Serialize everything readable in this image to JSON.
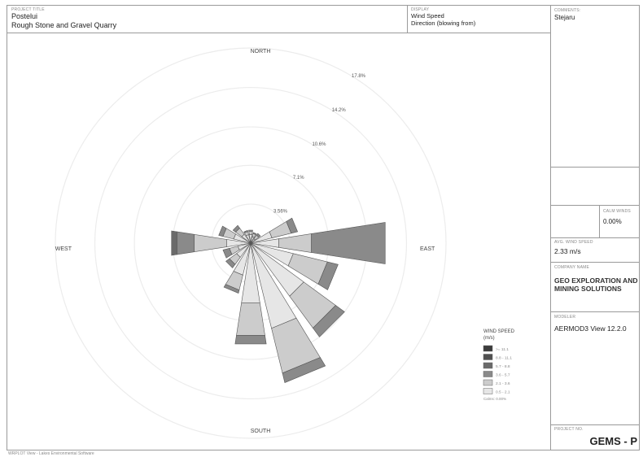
{
  "header": {
    "project_caption": "PROJECT TITLE",
    "project_title_line1": "Postelui",
    "project_title_line2": "Rough Stone and Gravel Quarry",
    "display_caption": "DISPLAY",
    "display_line1": "Wind Speed",
    "display_line2": "Direction (blowing from)"
  },
  "side_panel": {
    "comments_caption": "COMMENTS:",
    "comments_value": "Stejaru",
    "calms_caption": "CALM WINDS",
    "calms_value": "0.00%",
    "avg_caption": "AVG. WIND SPEED",
    "avg_value": "2.33 m/s",
    "company_caption": "COMPANY NAME",
    "company_line1": "GEO EXPLORATION AND",
    "company_line2": "MINING SOLUTIONS",
    "modeler_caption": "MODELER",
    "modeler_value": "AERMOD3 View 12.2.0",
    "logo_caption": "PROJECT NO.",
    "logo_value": "GEMS - P"
  },
  "footer": {
    "text": "WRPLOT View - Lakes Environmental Software"
  },
  "chart_data": {
    "type": "polar-bar",
    "title": "",
    "direction_labels": {
      "north": "NORTH",
      "south": "SOUTH",
      "east": "EAST",
      "west": "WEST"
    },
    "ring_labels": [
      "3.56%",
      "7.1%",
      "10.6%",
      "14.2%",
      "17.8%"
    ],
    "ring_values": [
      3.56,
      7.1,
      10.6,
      14.2,
      17.8
    ],
    "directions": [
      "N",
      "NNE",
      "NE",
      "ENE",
      "E",
      "ESE",
      "SE",
      "SSE",
      "S",
      "SSW",
      "SW",
      "WSW",
      "W",
      "WNW",
      "NW",
      "NNW"
    ],
    "speed_bins": [
      "0.5 - 2.1",
      "2.1 - 3.6",
      "3.6 - 5.7",
      "5.7 - 8.8",
      "8.8 - 11.1",
      ">= 11.1"
    ],
    "series": [
      {
        "bin": "0.5 - 2.1",
        "values": [
          0.8,
          0.6,
          0.5,
          2.0,
          2.6,
          4.0,
          6.0,
          8.0,
          5.5,
          3.0,
          1.6,
          1.2,
          2.2,
          1.6,
          1.0,
          0.8
        ]
      },
      {
        "bin": "2.1 - 3.6",
        "values": [
          0.3,
          0.3,
          0.4,
          1.8,
          3.0,
          3.2,
          3.6,
          4.2,
          3.0,
          1.4,
          0.8,
          0.8,
          3.0,
          1.0,
          0.7,
          0.3
        ]
      },
      {
        "bin": "3.6 - 5.7",
        "values": [
          0.1,
          0.1,
          0.2,
          0.6,
          6.8,
          1.0,
          1.0,
          0.9,
          0.8,
          0.3,
          0.4,
          0.6,
          1.6,
          0.4,
          0.3,
          0.1
        ]
      },
      {
        "bin": "5.7 - 8.8",
        "values": [
          0,
          0,
          0,
          0,
          0,
          0,
          0,
          0,
          0,
          0,
          0,
          0,
          0.5,
          0,
          0,
          0
        ]
      },
      {
        "bin": "8.8 - 11.1",
        "values": [
          0,
          0,
          0,
          0,
          0,
          0,
          0,
          0,
          0,
          0,
          0,
          0,
          0,
          0,
          0,
          0
        ]
      },
      {
        "bin": ">= 11.1",
        "values": [
          0,
          0,
          0,
          0,
          0,
          0,
          0,
          0,
          0,
          0,
          0,
          0,
          0,
          0,
          0,
          0
        ]
      }
    ],
    "legend": {
      "title_line1": "WIND SPEED",
      "title_line2": "(m/s)",
      "placement": "bottom-right",
      "note": "Calms: 0.00%",
      "colors": [
        "#e6e6e6",
        "#cccccc",
        "#8a8a8a",
        "#6a6a6a",
        "#505050",
        "#3c3c3c"
      ]
    }
  }
}
